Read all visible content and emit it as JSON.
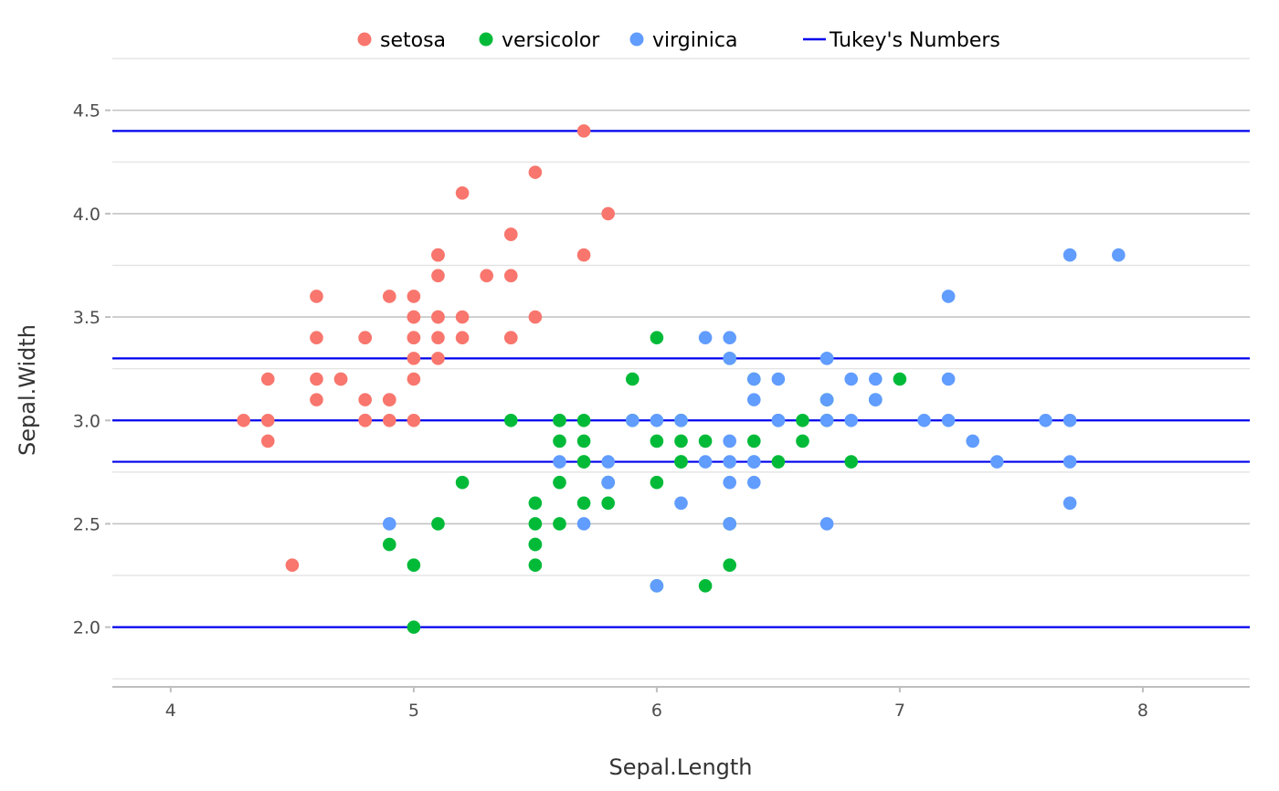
{
  "chart_data": {
    "type": "scatter",
    "xlabel": "Sepal.Length",
    "ylabel": "Sepal.Width",
    "xlim": [
      3.76,
      8.44
    ],
    "ylim": [
      1.72,
      4.68
    ],
    "x_ticks": [
      4,
      5,
      6,
      7,
      8
    ],
    "x_tick_labels": [
      "4",
      "5",
      "6",
      "7",
      "8"
    ],
    "y_ticks": [
      2.0,
      2.5,
      3.0,
      3.5,
      4.0,
      4.5
    ],
    "y_tick_labels": [
      "2.0",
      "2.5",
      "3.0",
      "3.5",
      "4.0",
      "4.5"
    ],
    "grid": true,
    "legend_position": "top",
    "hlines": {
      "name": "Tukey's Numbers",
      "color": "#0000EE",
      "values": [
        2.0,
        2.8,
        3.0,
        3.3,
        4.4
      ]
    },
    "series": [
      {
        "name": "setosa",
        "color": "#F8766D",
        "points": [
          [
            5.1,
            3.5
          ],
          [
            4.9,
            3.0
          ],
          [
            4.7,
            3.2
          ],
          [
            4.6,
            3.1
          ],
          [
            5.0,
            3.6
          ],
          [
            5.4,
            3.9
          ],
          [
            4.6,
            3.4
          ],
          [
            5.0,
            3.4
          ],
          [
            4.4,
            2.9
          ],
          [
            4.9,
            3.1
          ],
          [
            5.4,
            3.7
          ],
          [
            4.8,
            3.4
          ],
          [
            4.8,
            3.0
          ],
          [
            4.3,
            3.0
          ],
          [
            5.8,
            4.0
          ],
          [
            5.7,
            4.4
          ],
          [
            5.4,
            3.9
          ],
          [
            5.1,
            3.5
          ],
          [
            5.7,
            3.8
          ],
          [
            5.1,
            3.8
          ],
          [
            5.4,
            3.4
          ],
          [
            5.1,
            3.7
          ],
          [
            4.6,
            3.6
          ],
          [
            5.1,
            3.3
          ],
          [
            4.8,
            3.4
          ],
          [
            5.0,
            3.0
          ],
          [
            5.0,
            3.4
          ],
          [
            5.2,
            3.5
          ],
          [
            5.2,
            3.4
          ],
          [
            4.7,
            3.2
          ],
          [
            4.8,
            3.1
          ],
          [
            5.4,
            3.4
          ],
          [
            5.2,
            4.1
          ],
          [
            5.5,
            4.2
          ],
          [
            4.9,
            3.1
          ],
          [
            5.0,
            3.2
          ],
          [
            5.5,
            3.5
          ],
          [
            4.9,
            3.6
          ],
          [
            4.4,
            3.0
          ],
          [
            5.1,
            3.4
          ],
          [
            5.0,
            3.5
          ],
          [
            4.5,
            2.3
          ],
          [
            4.4,
            3.2
          ],
          [
            5.0,
            3.5
          ],
          [
            5.1,
            3.8
          ],
          [
            4.8,
            3.0
          ],
          [
            5.1,
            3.8
          ],
          [
            4.6,
            3.2
          ],
          [
            5.3,
            3.7
          ],
          [
            5.0,
            3.3
          ]
        ]
      },
      {
        "name": "versicolor",
        "color": "#00BA38",
        "points": [
          [
            7.0,
            3.2
          ],
          [
            6.4,
            3.2
          ],
          [
            6.9,
            3.1
          ],
          [
            5.5,
            2.3
          ],
          [
            6.5,
            2.8
          ],
          [
            5.7,
            2.8
          ],
          [
            6.3,
            3.3
          ],
          [
            4.9,
            2.4
          ],
          [
            6.6,
            2.9
          ],
          [
            5.2,
            2.7
          ],
          [
            5.0,
            2.0
          ],
          [
            5.9,
            3.0
          ],
          [
            6.0,
            2.2
          ],
          [
            6.1,
            2.9
          ],
          [
            5.6,
            2.9
          ],
          [
            6.7,
            3.1
          ],
          [
            5.6,
            3.0
          ],
          [
            5.8,
            2.7
          ],
          [
            6.2,
            2.2
          ],
          [
            5.6,
            2.5
          ],
          [
            5.9,
            3.2
          ],
          [
            6.1,
            2.8
          ],
          [
            6.3,
            2.5
          ],
          [
            6.1,
            2.8
          ],
          [
            6.4,
            2.9
          ],
          [
            6.6,
            3.0
          ],
          [
            6.8,
            2.8
          ],
          [
            6.7,
            3.0
          ],
          [
            6.0,
            2.9
          ],
          [
            5.7,
            2.6
          ],
          [
            5.5,
            2.4
          ],
          [
            5.5,
            2.4
          ],
          [
            5.8,
            2.7
          ],
          [
            6.0,
            2.7
          ],
          [
            5.4,
            3.0
          ],
          [
            6.0,
            3.4
          ],
          [
            6.7,
            3.1
          ],
          [
            6.3,
            2.3
          ],
          [
            5.6,
            3.0
          ],
          [
            5.5,
            2.5
          ],
          [
            5.5,
            2.6
          ],
          [
            6.1,
            3.0
          ],
          [
            5.8,
            2.6
          ],
          [
            5.0,
            2.3
          ],
          [
            5.6,
            2.7
          ],
          [
            5.7,
            3.0
          ],
          [
            5.7,
            2.9
          ],
          [
            6.2,
            2.9
          ],
          [
            5.1,
            2.5
          ],
          [
            5.7,
            2.8
          ]
        ]
      },
      {
        "name": "virginica",
        "color": "#619CFF",
        "points": [
          [
            6.3,
            3.3
          ],
          [
            5.8,
            2.7
          ],
          [
            7.1,
            3.0
          ],
          [
            6.3,
            2.9
          ],
          [
            6.5,
            3.0
          ],
          [
            7.6,
            3.0
          ],
          [
            4.9,
            2.5
          ],
          [
            7.3,
            2.9
          ],
          [
            6.7,
            2.5
          ],
          [
            7.2,
            3.6
          ],
          [
            6.5,
            3.2
          ],
          [
            6.4,
            2.7
          ],
          [
            6.8,
            3.0
          ],
          [
            5.7,
            2.5
          ],
          [
            5.8,
            2.8
          ],
          [
            6.4,
            3.2
          ],
          [
            6.5,
            3.0
          ],
          [
            7.7,
            3.8
          ],
          [
            7.7,
            2.6
          ],
          [
            6.0,
            2.2
          ],
          [
            6.9,
            3.2
          ],
          [
            5.6,
            2.8
          ],
          [
            7.7,
            2.8
          ],
          [
            6.3,
            2.7
          ],
          [
            6.7,
            3.3
          ],
          [
            7.2,
            3.2
          ],
          [
            6.2,
            2.8
          ],
          [
            6.1,
            3.0
          ],
          [
            6.4,
            2.8
          ],
          [
            7.2,
            3.0
          ],
          [
            7.4,
            2.8
          ],
          [
            7.9,
            3.8
          ],
          [
            6.4,
            2.8
          ],
          [
            6.3,
            2.8
          ],
          [
            6.1,
            2.6
          ],
          [
            7.7,
            3.0
          ],
          [
            6.3,
            3.4
          ],
          [
            6.4,
            3.1
          ],
          [
            6.0,
            3.0
          ],
          [
            6.9,
            3.1
          ],
          [
            6.7,
            3.1
          ],
          [
            6.9,
            3.1
          ],
          [
            5.8,
            2.7
          ],
          [
            6.8,
            3.2
          ],
          [
            6.7,
            3.3
          ],
          [
            6.7,
            3.0
          ],
          [
            6.3,
            2.5
          ],
          [
            6.5,
            3.0
          ],
          [
            6.2,
            3.4
          ],
          [
            5.9,
            3.0
          ]
        ]
      }
    ]
  }
}
